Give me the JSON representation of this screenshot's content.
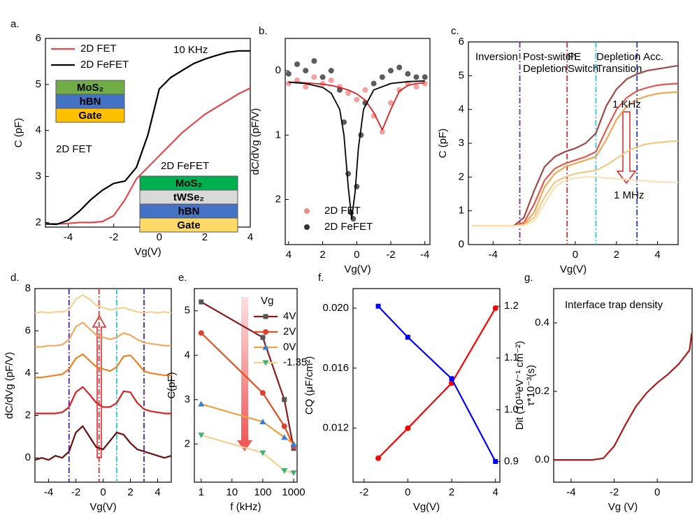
{
  "chart_data": [
    {
      "type": "line",
      "panel_label": "a.",
      "xlabel": "Vg(V)",
      "ylabel": "C (pF)",
      "x": [
        -5,
        -4.5,
        -4,
        -3.5,
        -3,
        -2.5,
        -2,
        -1.5,
        -1,
        -0.5,
        0,
        0.5,
        1,
        1.5,
        2,
        2.5,
        3,
        3.5,
        4
      ],
      "xlim": [
        -5,
        4
      ],
      "xticks": [
        -4,
        -2,
        0,
        2,
        4
      ],
      "ylim": [
        1.9,
        6
      ],
      "yticks": [
        2,
        3,
        4,
        5,
        6
      ],
      "series": [
        {
          "name": "2D FET",
          "color": "#e8454a",
          "values": [
            1.97,
            1.97,
            1.98,
            2.0,
            2.0,
            2.02,
            2.15,
            2.5,
            2.95,
            3.2,
            3.45,
            3.7,
            3.95,
            4.15,
            4.35,
            4.5,
            4.65,
            4.8,
            4.92
          ]
        },
        {
          "name": "2D FeFET",
          "color": "#000000",
          "values": [
            1.97,
            1.96,
            2.05,
            2.25,
            2.5,
            2.7,
            2.85,
            2.9,
            3.2,
            3.9,
            4.9,
            5.15,
            5.3,
            5.45,
            5.55,
            5.63,
            5.7,
            5.73,
            5.73
          ]
        }
      ],
      "legend": "upper left",
      "annotations": [
        {
          "text": "10 KHz",
          "color": "#000000"
        },
        {
          "text": "2D FET",
          "color": "#e8454a"
        },
        {
          "text": "2D FeFET",
          "color": "#000000"
        }
      ],
      "stacks": [
        {
          "layers": [
            "MoS₂",
            "hBN",
            "Gate"
          ],
          "colors": [
            "#70ad47",
            "#4472c4",
            "#ffc000"
          ]
        },
        {
          "layers": [
            "MoS₂",
            "tWSe₂",
            "hBN",
            "Gate"
          ],
          "colors": [
            "#00b050",
            "#d9d9d9",
            "#4472c4",
            "#ffd966"
          ]
        }
      ]
    },
    {
      "type": "scatter",
      "panel_label": "b.",
      "xlabel": "Vg(V)",
      "ylabel": "dC/dVg (pF/V)",
      "xlim": [
        4.2,
        -4.3
      ],
      "xticks": [
        4,
        2,
        0,
        -2,
        -4
      ],
      "ylim": [
        2.7,
        -0.5
      ],
      "yticks": [
        0,
        1,
        2
      ],
      "series": [
        {
          "name": "2D FET",
          "color": "#f08a8a",
          "marker": "circle",
          "line": false,
          "x": [
            4,
            3.5,
            3,
            2.5,
            2,
            1.5,
            1,
            0.5,
            0,
            -0.5,
            -1,
            -1.5,
            -2,
            -2.5,
            -3,
            -3.5,
            -4
          ],
          "values": [
            0.2,
            0.15,
            0.25,
            0.1,
            0.2,
            0.15,
            0.25,
            0.35,
            0.45,
            0.3,
            0.7,
            0.95,
            0.5,
            0.3,
            0.2,
            0.25,
            0.2
          ]
        },
        {
          "name": "2D FeFET",
          "color": "#333333",
          "marker": "circle",
          "line": false,
          "x": [
            4,
            3.5,
            3,
            2.5,
            2,
            1.5,
            1,
            0.75,
            0.5,
            0.35,
            0.2,
            0,
            -0.25,
            -0.5,
            -1,
            -1.5,
            -2,
            -2.5,
            -3,
            -3.5,
            -4
          ],
          "values": [
            0.05,
            -0.1,
            0,
            -0.15,
            0.1,
            0,
            0.3,
            0.8,
            1.6,
            2.2,
            2.3,
            1.8,
            1,
            0.5,
            0.2,
            0.1,
            0,
            -0.05,
            0.05,
            0.1,
            0.1
          ]
        },
        {
          "color": "#e02020",
          "x": [
            4,
            3.5,
            3,
            2.5,
            2,
            1.5,
            1,
            0.5,
            0,
            -0.5,
            -1,
            -1.5,
            -2,
            -2.5,
            -3,
            -3.5,
            -4
          ],
          "values": [
            0.18,
            0.18,
            0.19,
            0.2,
            0.21,
            0.23,
            0.26,
            0.3,
            0.36,
            0.46,
            0.65,
            0.92,
            0.6,
            0.32,
            0.23,
            0.2,
            0.19
          ]
        },
        {
          "color": "#000000",
          "x": [
            4,
            3,
            2,
            1.5,
            1,
            0.75,
            0.5,
            0.3,
            0.1,
            -0.1,
            -0.4,
            -1,
            -2,
            -3,
            -4
          ],
          "values": [
            0.18,
            0.2,
            0.26,
            0.35,
            0.6,
            1,
            1.8,
            2.3,
            1.9,
            1.2,
            0.6,
            0.3,
            0.2,
            0.17,
            0.16
          ]
        }
      ],
      "legend": "lower left"
    },
    {
      "type": "line",
      "panel_label": "c.",
      "xlabel": "Vg(V)",
      "ylabel": "C (pF)",
      "x": [
        -5,
        -4.5,
        -4,
        -3.5,
        -3,
        -2.5,
        -2,
        -1.5,
        -1,
        -0.5,
        0,
        0.5,
        1,
        1.5,
        2,
        2.5,
        3,
        3.5,
        4,
        4.5,
        5
      ],
      "xlim": [
        -5.2,
        5
      ],
      "xticks": [
        -4,
        0,
        2,
        4
      ],
      "ylim": [
        0,
        6
      ],
      "yticks": [
        0,
        1,
        2,
        3,
        4,
        5,
        6
      ],
      "series": [
        {
          "color": "#9e4848",
          "values": [
            0.55,
            0.55,
            0.55,
            0.55,
            0.55,
            0.8,
            1.6,
            2.3,
            2.6,
            2.75,
            2.85,
            3.0,
            3.3,
            4.1,
            4.6,
            4.9,
            5.05,
            5.15,
            5.2,
            5.25,
            5.3
          ]
        },
        {
          "color": "#e4584c",
          "values": [
            0.55,
            0.55,
            0.55,
            0.55,
            0.55,
            0.65,
            1.2,
            1.9,
            2.25,
            2.4,
            2.5,
            2.6,
            2.75,
            3.4,
            4.0,
            4.35,
            4.55,
            4.65,
            4.72,
            4.75,
            4.77
          ]
        },
        {
          "color": "#f2a652",
          "values": [
            0.55,
            0.55,
            0.55,
            0.55,
            0.55,
            0.6,
            0.95,
            1.7,
            2.1,
            2.3,
            2.4,
            2.5,
            2.6,
            3.1,
            3.7,
            4.1,
            4.3,
            4.4,
            4.47,
            4.5,
            4.52
          ]
        },
        {
          "color": "#f7c784",
          "values": [
            0.55,
            0.55,
            0.55,
            0.55,
            0.55,
            0.58,
            0.8,
            1.4,
            1.85,
            2.0,
            2.1,
            2.15,
            2.2,
            2.35,
            2.55,
            2.75,
            2.9,
            2.98,
            3.02,
            3.05,
            3.07
          ]
        },
        {
          "color": "#fbe2b6",
          "values": [
            0.55,
            0.55,
            0.55,
            0.55,
            0.55,
            0.57,
            0.7,
            1.2,
            1.7,
            1.9,
            1.97,
            2.0,
            2.0,
            1.97,
            1.95,
            1.93,
            1.9,
            1.88,
            1.86,
            1.85,
            1.84
          ]
        }
      ],
      "vlines": [
        {
          "value": -2.7,
          "color": "#7030a0"
        },
        {
          "value": -0.4,
          "color": "#e03030"
        },
        {
          "value": 1,
          "color": "#40c0e0"
        },
        {
          "value": 3,
          "color": "#2040c0"
        }
      ],
      "annotations": [
        {
          "text": "Inversion",
          "color": "#7030a0"
        },
        {
          "text": "Post-switch",
          "color": "#808080"
        },
        {
          "text": "Depletion",
          "color": "#808080"
        },
        {
          "text": "FE",
          "color": "#ed7d31"
        },
        {
          "text": "Switch",
          "color": "#ed7d31"
        },
        {
          "text": "Depletion",
          "color": "#40b0e0"
        },
        {
          "text": "Transition",
          "color": "#40b0e0"
        },
        {
          "text": "Acc.",
          "color": "#2040c0"
        },
        {
          "text": "1 KHz",
          "color": "#000000"
        },
        {
          "text": "1 MHz",
          "color": "#000000"
        }
      ]
    },
    {
      "type": "line",
      "panel_label": "d.",
      "xlabel": "Vg(V)",
      "ylabel": "dC/dVg (pF/V)",
      "x": [
        -5,
        -4.5,
        -4,
        -3.5,
        -3,
        -2.5,
        -2,
        -1.5,
        -1,
        -0.5,
        0,
        0.5,
        1,
        1.5,
        2,
        2.5,
        3,
        3.5,
        4,
        4.5,
        5
      ],
      "xlim": [
        -5,
        5
      ],
      "xticks": [
        -4,
        -2,
        0,
        2,
        4
      ],
      "ylim": [
        -1.15,
        8
      ],
      "yticks": [
        0,
        2,
        4,
        6,
        8
      ],
      "series": [
        {
          "color": "#6b0f0f",
          "values": [
            -0.1,
            0,
            -0.1,
            0.1,
            0,
            0.3,
            1.2,
            1.5,
            1,
            0.5,
            0.4,
            0.8,
            1.2,
            1.1,
            0.7,
            0.4,
            0.3,
            0.2,
            0.1,
            0,
            0.1
          ]
        },
        {
          "color": "#e02020",
          "values": [
            2.1,
            2.1,
            2.1,
            2.1,
            2.15,
            2.4,
            3.1,
            3.35,
            3,
            2.6,
            2.4,
            2.4,
            2.6,
            3.15,
            3.1,
            2.6,
            2.3,
            2.2,
            2.15,
            2.1,
            2.1
          ]
        },
        {
          "color": "#f08020",
          "values": [
            3.8,
            3.8,
            3.85,
            3.9,
            3.95,
            4.2,
            4.7,
            4.9,
            4.6,
            4.3,
            4.2,
            4.1,
            4.3,
            4.8,
            4.85,
            4.5,
            4.1,
            4,
            3.95,
            3.9,
            3.9
          ]
        },
        {
          "color": "#f5a860",
          "values": [
            5.25,
            5.25,
            5.3,
            5.3,
            5.35,
            5.6,
            6.2,
            6.4,
            6.1,
            5.8,
            5.7,
            5.6,
            5.7,
            5.9,
            5.8,
            5.6,
            5.45,
            5.4,
            5.35,
            5.3,
            5.3
          ]
        },
        {
          "color": "#f8d090",
          "values": [
            6.85,
            6.9,
            6.85,
            6.9,
            6.9,
            7,
            7.5,
            7.7,
            7.5,
            7.2,
            7.1,
            7,
            7.05,
            7.1,
            7,
            6.9,
            6.85,
            6.9,
            6.85,
            6.9,
            6.85
          ]
        }
      ],
      "vlines": [
        {
          "value": -2.5,
          "color": "#5020a0"
        },
        {
          "value": -0.3,
          "color": "#ff2020"
        },
        {
          "value": 1,
          "color": "#20d0e0"
        },
        {
          "value": 3,
          "color": "#5020a0"
        }
      ]
    },
    {
      "type": "line",
      "panel_label": "e.",
      "xlabel": "f (kHz)",
      "ylabel": "C(pF)",
      "xlog": true,
      "x": [
        1,
        100,
        500,
        1000
      ],
      "xlim": [
        0.6,
        1300
      ],
      "xticks": [
        1,
        10,
        100,
        1000
      ],
      "ylim": [
        1.14,
        5.5
      ],
      "yticks": [
        2,
        3,
        4,
        5
      ],
      "series": [
        {
          "name": "4V",
          "color": "#8b1a1a",
          "marker": "square",
          "marker_color": "#555555",
          "values": [
            5.2,
            4.4,
            3.0,
            1.9
          ]
        },
        {
          "name": "2V",
          "color": "#e05020",
          "marker": "circle",
          "marker_color": "#e04030",
          "values": [
            4.5,
            3.15,
            2.4,
            1.95
          ]
        },
        {
          "name": "0V",
          "color": "#f0a040",
          "marker": "up",
          "marker_color": "#3a7bd5",
          "values": [
            2.9,
            2.5,
            2.15,
            2.0
          ]
        },
        {
          "name": "-1.35",
          "color": "#f5d090",
          "marker": "down",
          "marker_color": "#3cb371",
          "values": [
            2.2,
            1.8,
            1.4,
            1.35
          ]
        }
      ],
      "legend": "upper right",
      "legend_title": "Vg"
    },
    {
      "type": "line",
      "panel_label": "f.",
      "xlabel": "Vg(V)",
      "ylabel": "CQ (μF/cm²)",
      "y2label": "τ*10⁻³(s)",
      "ylabel_color": "#ff0000",
      "y2label_color": "#0000ff",
      "x": [
        -1.35,
        0,
        2,
        4
      ],
      "xlim": [
        -2.5,
        4.2
      ],
      "xticks": [
        -2,
        0,
        2,
        4
      ],
      "ylim": [
        0.0084,
        0.0213
      ],
      "yticks": [
        0.012,
        0.016,
        {
          "value": 0.02,
          "label": "0.020"
        }
      ],
      "y2lim": [
        0.86,
        1.234
      ],
      "y2ticks": [
        0.9,
        {
          "value": 1,
          "label": "1.0"
        },
        1.1,
        1.2
      ],
      "series": [
        {
          "color": "#ff0000",
          "marker": "circle",
          "marker_color": "#ff0000",
          "values": [
            0.01,
            0.012,
            0.015,
            0.02
          ]
        },
        {
          "color": "#0000ff",
          "marker": "square",
          "marker_color": "#0000ff",
          "axis": "y2",
          "values": [
            1.2,
            1.14,
            1.06,
            0.9
          ]
        }
      ]
    },
    {
      "type": "line",
      "panel_label": "g.",
      "xlabel": "Vg (V)",
      "ylabel": "Dit (10¹³eV⁻¹ cm⁻²)",
      "x": [
        -4.8,
        -4.5,
        -4,
        -3.5,
        -3,
        -2.5,
        -2,
        -1.5,
        -1,
        -0.5,
        0,
        0.5,
        1,
        1.5,
        1.6
      ],
      "xlim": [
        -4.81,
        1.62
      ],
      "xticks": [
        -4,
        -2,
        0
      ],
      "ylim": [
        -0.065,
        0.5
      ],
      "yticks": [
        {
          "value": 0,
          "label": "0.0"
        },
        0.2,
        0.4
      ],
      "series": [
        {
          "color": "#b01818",
          "values": [
            0,
            0,
            0,
            0,
            0,
            0.005,
            0.04,
            0.1,
            0.155,
            0.195,
            0.225,
            0.25,
            0.28,
            0.32,
            0.37
          ]
        }
      ],
      "annotations": [
        {
          "text": "Interface trap density",
          "color": "#000000"
        }
      ]
    }
  ]
}
